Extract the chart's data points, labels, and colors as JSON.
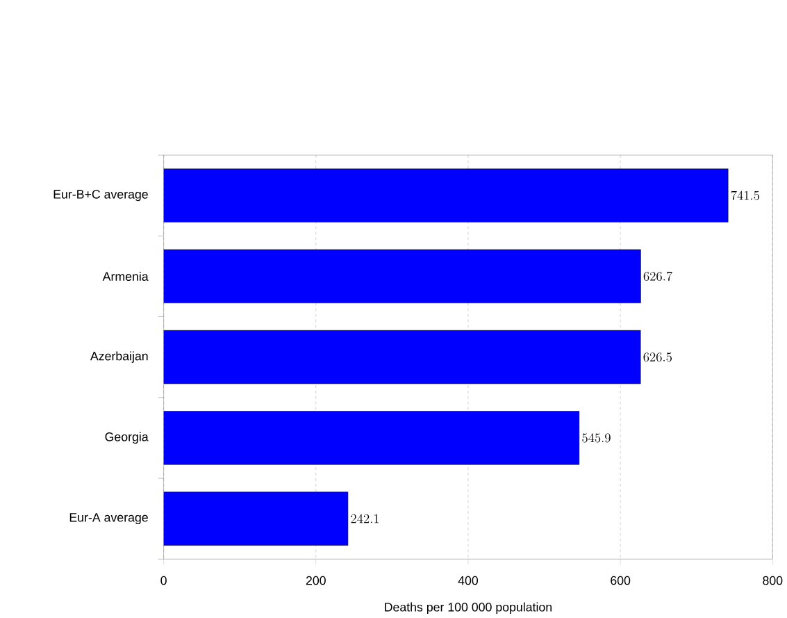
{
  "chart_data": {
    "type": "bar",
    "orientation": "horizontal",
    "xlabel": "Deaths per 100 000 population",
    "categories": [
      "Eur-B+C average",
      "Armenia",
      "Azerbaijan",
      "Georgia",
      "Eur-A average"
    ],
    "values": [
      741.5,
      626.7,
      626.5,
      545.9,
      242.1
    ],
    "color": "#0000ff",
    "data_labels": true,
    "grid": "x",
    "xlim": [
      0,
      800
    ],
    "xticks": [
      0,
      200,
      400,
      600,
      800
    ]
  }
}
